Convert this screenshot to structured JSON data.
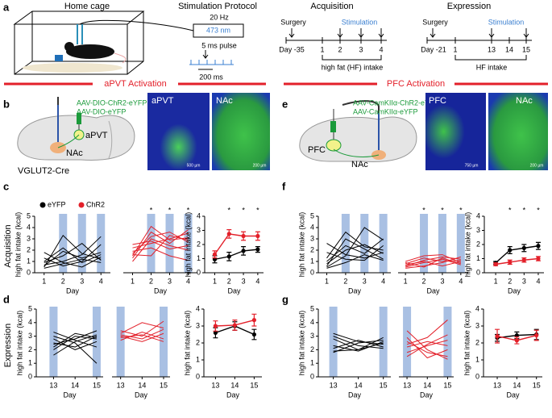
{
  "panel_labels": [
    "a",
    "b",
    "c",
    "d",
    "e",
    "f",
    "g"
  ],
  "protocol": {
    "home_cage": "Home cage",
    "title": "Stimulation Protocol",
    "frequency": "20 Hz",
    "wavelength": "473 nm",
    "pulse": "5 ms pulse",
    "period": "200 ms"
  },
  "acquisition_timeline": {
    "title": "Acquisition",
    "surgery": "Surgery",
    "stimulation": "Stimulation",
    "days": [
      "Day -35",
      "1",
      "2",
      "3",
      "4"
    ],
    "intake": "high fat (HF) intake"
  },
  "expression_timeline": {
    "title": "Expression",
    "surgery": "Surgery",
    "stimulation": "Stimulation",
    "days": [
      "Day -21",
      "1",
      "13",
      "14",
      "15"
    ],
    "intake": "HF intake"
  },
  "sections": [
    "aPVT Activation",
    "PFC Activation"
  ],
  "apvt_diagram": {
    "virus": [
      "AAV-DIO-ChR2-eYFP",
      "AAV-DIO-eYFP"
    ],
    "regions": [
      "aPVT",
      "NAc"
    ],
    "mouse_line": "VGLUT2-Cre",
    "images": [
      {
        "label": "aPVT",
        "scale": "500 µm"
      },
      {
        "label": "NAc",
        "scale": "200 µm"
      }
    ]
  },
  "pfc_diagram": {
    "virus": [
      "AAV-CamKIIα-ChR2-eYFP",
      "AAV-CamKIIα-eYFP"
    ],
    "regions": [
      "PFC",
      "NAc"
    ],
    "images": [
      {
        "label": "PFC",
        "scale": "750 µm"
      },
      {
        "label": "NAc",
        "scale": "200 µm"
      }
    ]
  },
  "row_labels": [
    "Acquisition",
    "Expression"
  ],
  "chart_data": [
    {
      "type": "line",
      "x": [
        1,
        2,
        3,
        4
      ],
      "xlim": [
        0.5,
        4.5
      ],
      "xticks": [
        1,
        2,
        3,
        4
      ],
      "ylim": [
        0,
        5
      ],
      "yticks": [
        0,
        1,
        2,
        3,
        4,
        5
      ],
      "xlabel": "Day",
      "ylabel": "high fat intake  (kcal)",
      "highlight_x": [
        2,
        3,
        4
      ],
      "legend": [
        {
          "name": "eYFP",
          "color": "#000000"
        },
        {
          "name": "ChR2",
          "color": "#e3202a"
        }
      ],
      "series": [
        {
          "color": "#000000",
          "values": [
            0.5,
            3.3,
            1.7,
            1.2
          ]
        },
        {
          "color": "#000000",
          "values": [
            1.0,
            2.2,
            0.9,
            1.6
          ]
        },
        {
          "color": "#000000",
          "values": [
            0.7,
            1.0,
            1.6,
            3.2
          ]
        },
        {
          "color": "#000000",
          "values": [
            1.3,
            0.6,
            1.0,
            2.5
          ]
        },
        {
          "color": "#000000",
          "values": [
            0.9,
            1.5,
            2.6,
            1.1
          ]
        },
        {
          "color": "#000000",
          "values": [
            0.4,
            0.8,
            1.2,
            0.9
          ]
        },
        {
          "color": "#000000",
          "values": [
            1.8,
            0.9,
            0.5,
            1.4
          ]
        },
        {
          "color": "#000000",
          "values": [
            0.6,
            1.9,
            1.3,
            1.8
          ]
        }
      ]
    },
    {
      "type": "line",
      "x": [
        1,
        2,
        3,
        4
      ],
      "xlim": [
        0.5,
        4.5
      ],
      "xticks": [
        1,
        2,
        3,
        4
      ],
      "ylim": [
        0,
        5
      ],
      "xlabel": "Day",
      "highlight_x": [
        2,
        3,
        4
      ],
      "annotations": [
        {
          "x": 2,
          "text": "*"
        },
        {
          "x": 3,
          "text": "*"
        },
        {
          "x": 4,
          "text": "*"
        }
      ],
      "series": [
        {
          "color": "#e3202a",
          "values": [
            1.5,
            4.1,
            2.9,
            3.1
          ]
        },
        {
          "color": "#e3202a",
          "values": [
            1.7,
            3.2,
            3.6,
            2.7
          ]
        },
        {
          "color": "#e3202a",
          "values": [
            2.2,
            2.6,
            3.0,
            3.5
          ]
        },
        {
          "color": "#e3202a",
          "values": [
            1.0,
            3.0,
            2.4,
            2.0
          ]
        },
        {
          "color": "#e3202a",
          "values": [
            1.9,
            2.2,
            1.5,
            1.1
          ]
        },
        {
          "color": "#e3202a",
          "values": [
            1.3,
            3.6,
            2.6,
            3.8
          ]
        },
        {
          "color": "#e3202a",
          "values": [
            2.5,
            2.8,
            2.1,
            2.4
          ]
        },
        {
          "color": "#e3202a",
          "values": [
            1.6,
            1.5,
            3.3,
            2.9
          ]
        }
      ]
    },
    {
      "type": "line",
      "x": [
        1,
        2,
        3,
        4
      ],
      "xlim": [
        0.3,
        4.4
      ],
      "xticks": [
        1,
        2,
        3,
        4
      ],
      "ylim": [
        0,
        4
      ],
      "yticks": [
        0,
        1,
        2,
        3,
        4
      ],
      "xlabel": "Day",
      "ylabel": "high fat intake  (kcal)",
      "annotations": [
        {
          "x": 2,
          "text": "*"
        },
        {
          "x": 3,
          "text": "*"
        },
        {
          "x": 4,
          "text": "*"
        }
      ],
      "series": [
        {
          "color": "#000000",
          "values": [
            0.95,
            1.15,
            1.55,
            1.65
          ],
          "errors": [
            0.25,
            0.3,
            0.3,
            0.2
          ]
        },
        {
          "color": "#e3202a",
          "values": [
            1.3,
            2.75,
            2.6,
            2.6
          ],
          "errors": [
            0.25,
            0.3,
            0.3,
            0.3
          ]
        }
      ]
    },
    {
      "type": "line",
      "x": [
        13,
        14,
        15
      ],
      "xlim": [
        12.2,
        15.3
      ],
      "xticks": [
        13,
        14,
        15
      ],
      "ylim": [
        0,
        5
      ],
      "yticks": [
        0,
        1,
        2,
        3,
        4,
        5
      ],
      "xlabel": "Day",
      "ylabel": "high fat intake  (kcal)",
      "highlight_x": [
        13,
        15
      ],
      "series": [
        {
          "color": "#000000",
          "values": [
            2.0,
            3.0,
            2.8
          ]
        },
        {
          "color": "#000000",
          "values": [
            2.5,
            2.2,
            3.0
          ]
        },
        {
          "color": "#000000",
          "values": [
            3.3,
            2.7,
            2.2
          ]
        },
        {
          "color": "#000000",
          "values": [
            2.8,
            2.0,
            2.6
          ]
        },
        {
          "color": "#000000",
          "values": [
            1.6,
            2.6,
            3.1
          ]
        },
        {
          "color": "#000000",
          "values": [
            3.0,
            2.5,
            1.0
          ]
        },
        {
          "color": "#000000",
          "values": [
            2.2,
            3.2,
            2.9
          ]
        },
        {
          "color": "#000000",
          "values": [
            2.4,
            2.8,
            3.4
          ]
        }
      ]
    },
    {
      "type": "line",
      "x": [
        13,
        14,
        15
      ],
      "xlim": [
        12.6,
        15.3
      ],
      "xticks": [
        13,
        14,
        15
      ],
      "ylim": [
        0,
        5
      ],
      "xlabel": "Day",
      "highlight_x": [
        13,
        15
      ],
      "series": [
        {
          "color": "#e3202a",
          "values": [
            3.2,
            4.0,
            3.6
          ]
        },
        {
          "color": "#e3202a",
          "values": [
            2.9,
            3.1,
            2.6
          ]
        },
        {
          "color": "#e3202a",
          "values": [
            3.0,
            2.6,
            3.2
          ]
        },
        {
          "color": "#e3202a",
          "values": [
            3.4,
            3.0,
            4.1
          ]
        },
        {
          "color": "#e3202a",
          "values": [
            2.7,
            3.3,
            2.8
          ]
        },
        {
          "color": "#e3202a",
          "values": [
            3.1,
            2.8,
            3.5
          ]
        }
      ]
    },
    {
      "type": "line",
      "x": [
        13,
        14,
        15
      ],
      "xlim": [
        12.4,
        15.4
      ],
      "xticks": [
        13,
        14,
        15
      ],
      "ylim": [
        0,
        4
      ],
      "yticks": [
        0,
        1,
        2,
        3,
        4
      ],
      "xlabel": "Day",
      "ylabel": "high fat intake  (kcal)",
      "series": [
        {
          "color": "#000000",
          "values": [
            2.6,
            3.0,
            2.5
          ],
          "errors": [
            0.3,
            0.25,
            0.3
          ]
        },
        {
          "color": "#e3202a",
          "values": [
            3.0,
            3.05,
            3.35
          ],
          "errors": [
            0.3,
            0.3,
            0.35
          ]
        }
      ]
    },
    {
      "type": "line",
      "x": [
        1,
        2,
        3,
        4
      ],
      "xlim": [
        0.55,
        4.4
      ],
      "xticks": [
        1,
        2,
        3,
        4
      ],
      "ylim": [
        0,
        5
      ],
      "yticks": [
        0,
        1,
        2,
        3,
        4,
        5
      ],
      "xlabel": "Day",
      "ylabel": "high fat intake  (kcal)",
      "highlight_x": [
        2,
        3,
        4
      ],
      "series": [
        {
          "color": "#000000",
          "values": [
            0.6,
            3.0,
            2.1,
            1.2
          ]
        },
        {
          "color": "#000000",
          "values": [
            1.0,
            2.4,
            1.7,
            3.0
          ]
        },
        {
          "color": "#000000",
          "values": [
            0.5,
            1.5,
            4.0,
            2.9
          ]
        },
        {
          "color": "#000000",
          "values": [
            1.8,
            1.2,
            1.1,
            2.4
          ]
        },
        {
          "color": "#000000",
          "values": [
            0.8,
            2.0,
            2.5,
            1.7
          ]
        },
        {
          "color": "#000000",
          "values": [
            1.3,
            3.6,
            2.3,
            2.0
          ]
        },
        {
          "color": "#000000",
          "values": [
            0.4,
            0.9,
            1.6,
            1.1
          ]
        },
        {
          "color": "#000000",
          "values": [
            2.6,
            1.6,
            1.3,
            1.8
          ]
        }
      ]
    },
    {
      "type": "line",
      "x": [
        1,
        2,
        3,
        4
      ],
      "xlim": [
        0.6,
        4.4
      ],
      "xticks": [
        1,
        2,
        3,
        4
      ],
      "ylim": [
        0,
        5
      ],
      "xlabel": "Day",
      "highlight_x": [
        2,
        3,
        4
      ],
      "annotations": [
        {
          "x": 2,
          "text": "*"
        },
        {
          "x": 3,
          "text": "*"
        },
        {
          "x": 4,
          "text": "*"
        }
      ],
      "series": [
        {
          "color": "#e3202a",
          "values": [
            0.5,
            0.9,
            1.2,
            0.7
          ]
        },
        {
          "color": "#e3202a",
          "values": [
            0.8,
            1.3,
            1.0,
            1.1
          ]
        },
        {
          "color": "#e3202a",
          "values": [
            0.4,
            0.6,
            0.9,
            1.4
          ]
        },
        {
          "color": "#e3202a",
          "values": [
            1.0,
            1.5,
            1.6,
            0.9
          ]
        },
        {
          "color": "#e3202a",
          "values": [
            0.7,
            1.0,
            0.6,
            1.0
          ]
        },
        {
          "color": "#e3202a",
          "values": [
            0.9,
            0.5,
            1.3,
            0.8
          ]
        },
        {
          "color": "#e3202a",
          "values": [
            0.6,
            1.1,
            1.4,
            1.2
          ]
        }
      ]
    },
    {
      "type": "line",
      "x": [
        1,
        2,
        3,
        4
      ],
      "xlim": [
        0.2,
        4.4
      ],
      "xticks": [
        1,
        2,
        3,
        4
      ],
      "ylim": [
        0,
        4
      ],
      "yticks": [
        0,
        1,
        2,
        3,
        4
      ],
      "xlabel": "Day",
      "ylabel": "high fat intake  (kcal)",
      "annotations": [
        {
          "x": 2,
          "text": "*"
        },
        {
          "x": 3,
          "text": "*"
        },
        {
          "x": 4,
          "text": "*"
        }
      ],
      "series": [
        {
          "color": "#000000",
          "values": [
            0.7,
            1.6,
            1.75,
            1.9
          ],
          "errors": [
            0.1,
            0.25,
            0.25,
            0.25
          ]
        },
        {
          "color": "#e3202a",
          "values": [
            0.6,
            0.75,
            0.9,
            1.0
          ],
          "errors": [
            0.1,
            0.15,
            0.15,
            0.15
          ]
        }
      ]
    },
    {
      "type": "line",
      "x": [
        13,
        14,
        15
      ],
      "xlim": [
        12.4,
        15.3
      ],
      "xticks": [
        13,
        14,
        15
      ],
      "ylim": [
        0,
        5
      ],
      "yticks": [
        0,
        1,
        2,
        3,
        4,
        5
      ],
      "xlabel": "Day",
      "ylabel": "high fat intake  (kcal)",
      "highlight_x": [
        13,
        15
      ],
      "series": [
        {
          "color": "#000000",
          "values": [
            1.9,
            2.0,
            2.5
          ]
        },
        {
          "color": "#000000",
          "values": [
            3.2,
            2.6,
            2.4
          ]
        },
        {
          "color": "#000000",
          "values": [
            2.1,
            2.7,
            2.2
          ]
        },
        {
          "color": "#000000",
          "values": [
            2.8,
            2.0,
            2.9
          ]
        },
        {
          "color": "#000000",
          "values": [
            2.3,
            1.9,
            2.6
          ]
        },
        {
          "color": "#000000",
          "values": [
            3.0,
            2.3,
            2.1
          ]
        },
        {
          "color": "#000000",
          "values": [
            1.8,
            2.5,
            2.7
          ]
        }
      ]
    },
    {
      "type": "line",
      "x": [
        13,
        14,
        15
      ],
      "xlim": [
        12.6,
        15.3
      ],
      "xticks": [
        13,
        14,
        15
      ],
      "ylim": [
        0,
        5
      ],
      "xlabel": "Day",
      "highlight_x": [
        13,
        15
      ],
      "series": [
        {
          "color": "#e3202a",
          "values": [
            3.4,
            2.0,
            1.3
          ]
        },
        {
          "color": "#e3202a",
          "values": [
            2.4,
            2.9,
            4.2
          ]
        },
        {
          "color": "#e3202a",
          "values": [
            1.8,
            2.3,
            2.7
          ]
        },
        {
          "color": "#e3202a",
          "values": [
            2.9,
            1.4,
            2.0
          ]
        },
        {
          "color": "#e3202a",
          "values": [
            1.5,
            2.4,
            3.1
          ]
        },
        {
          "color": "#e3202a",
          "values": [
            2.6,
            1.8,
            1.5
          ]
        },
        {
          "color": "#e3202a",
          "values": [
            2.2,
            2.6,
            2.3
          ]
        }
      ]
    },
    {
      "type": "line",
      "x": [
        13,
        14,
        15
      ],
      "xlim": [
        12.3,
        15.3
      ],
      "xticks": [
        13,
        14,
        15
      ],
      "ylim": [
        0,
        4
      ],
      "yticks": [
        0,
        1,
        2,
        3,
        4
      ],
      "xlabel": "Day",
      "ylabel": "high fat intake  (kcal)",
      "series": [
        {
          "color": "#000000",
          "values": [
            2.3,
            2.45,
            2.5
          ],
          "errors": [
            0.2,
            0.2,
            0.3
          ]
        },
        {
          "color": "#e3202a",
          "values": [
            2.4,
            2.15,
            2.45
          ],
          "errors": [
            0.4,
            0.2,
            0.3
          ]
        }
      ]
    }
  ]
}
